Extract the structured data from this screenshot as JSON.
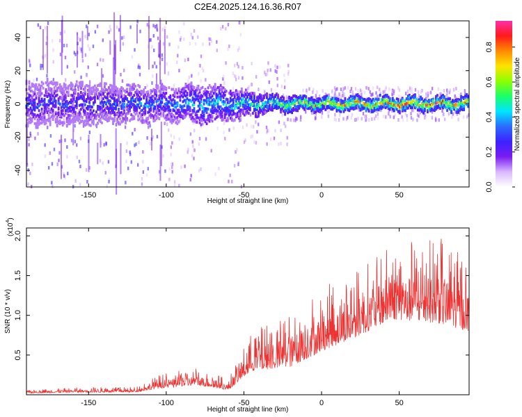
{
  "title": "C2E4.2025.124.16.36.R07",
  "chart_data": [
    {
      "type": "heatmap",
      "xlabel": "Height of straight line (km)",
      "ylabel": "Frequency (Hz)",
      "xlim": [
        -190,
        95
      ],
      "ylim": [
        -50,
        50
      ],
      "xticks": [
        -150,
        -100,
        -50,
        0,
        50
      ],
      "xtick_labels": [
        "-150",
        "-100",
        "-50",
        "0",
        "50"
      ],
      "yticks": [
        -40,
        -20,
        0,
        20,
        40
      ],
      "ytick_labels": [
        "-40",
        "-20",
        "0",
        "20",
        "40"
      ],
      "colorbar": {
        "label": "Normalized spectral amplitude",
        "range": [
          0,
          0.95
        ],
        "ticks": [
          0.0,
          0.2,
          0.4,
          0.6,
          0.8
        ],
        "tick_labels": [
          "0.0",
          "0.2",
          "0.4",
          "0.6",
          "0.8"
        ],
        "colormap": [
          "#ffffff",
          "#d9b8ff",
          "#7a1cf0",
          "#3b22ff",
          "#2b6bff",
          "#00e5ff",
          "#19ff6a",
          "#8cff00",
          "#ffe400",
          "#ff8a00",
          "#ff1a1a",
          "#ff2fa8"
        ]
      },
      "band": {
        "center_hz": 0,
        "description_points": [
          {
            "x": -190,
            "halfwidth_hz": 14,
            "peak": 0.3
          },
          {
            "x": -150,
            "halfwidth_hz": 12,
            "peak": 0.32
          },
          {
            "x": -100,
            "halfwidth_hz": 10,
            "peak": 0.38
          },
          {
            "x": -75,
            "halfwidth_hz": 12,
            "peak": 0.45
          },
          {
            "x": -50,
            "halfwidth_hz": 8,
            "peak": 0.5
          },
          {
            "x": -30,
            "halfwidth_hz": 5,
            "peak": 0.6
          },
          {
            "x": 0,
            "halfwidth_hz": 4,
            "peak": 0.75
          },
          {
            "x": 30,
            "halfwidth_hz": 4,
            "peak": 0.85
          },
          {
            "x": 60,
            "halfwidth_hz": 4,
            "peak": 0.85
          },
          {
            "x": 95,
            "halfwidth_hz": 4,
            "peak": 0.8
          }
        ]
      }
    },
    {
      "type": "line",
      "xlabel": "Height of straight line (km)",
      "ylabel": "SNR (10 * v/v)",
      "y_multiplier_label": "(x10",
      "y_multiplier_exp": "4",
      "y_multiplier_close": ")",
      "xlim": [
        -190,
        95
      ],
      "ylim": [
        0,
        2.1
      ],
      "y_unit_scale": 10000,
      "xticks": [
        -150,
        -100,
        -50,
        0,
        50
      ],
      "xtick_labels": [
        "-150",
        "-100",
        "-50",
        "0",
        "50"
      ],
      "yticks": [
        0.5,
        1.0,
        1.5,
        2.0
      ],
      "ytick_labels": [
        "0.5",
        "1.0",
        "1.5",
        "2.0"
      ],
      "color": "#ee3333",
      "envelope": [
        {
          "x": -190,
          "base": 0.02,
          "peak": 0.06
        },
        {
          "x": -160,
          "base": 0.03,
          "peak": 0.09
        },
        {
          "x": -120,
          "base": 0.03,
          "peak": 0.1
        },
        {
          "x": -105,
          "base": 0.08,
          "peak": 0.25
        },
        {
          "x": -80,
          "base": 0.12,
          "peak": 0.35
        },
        {
          "x": -60,
          "base": 0.06,
          "peak": 0.2
        },
        {
          "x": -45,
          "base": 0.3,
          "peak": 0.8
        },
        {
          "x": -20,
          "base": 0.35,
          "peak": 1.05
        },
        {
          "x": 0,
          "base": 0.55,
          "peak": 1.35
        },
        {
          "x": 25,
          "base": 0.75,
          "peak": 1.6
        },
        {
          "x": 45,
          "base": 0.95,
          "peak": 1.9
        },
        {
          "x": 75,
          "base": 0.9,
          "peak": 2.0
        },
        {
          "x": 95,
          "base": 0.8,
          "peak": 1.7
        }
      ]
    }
  ]
}
